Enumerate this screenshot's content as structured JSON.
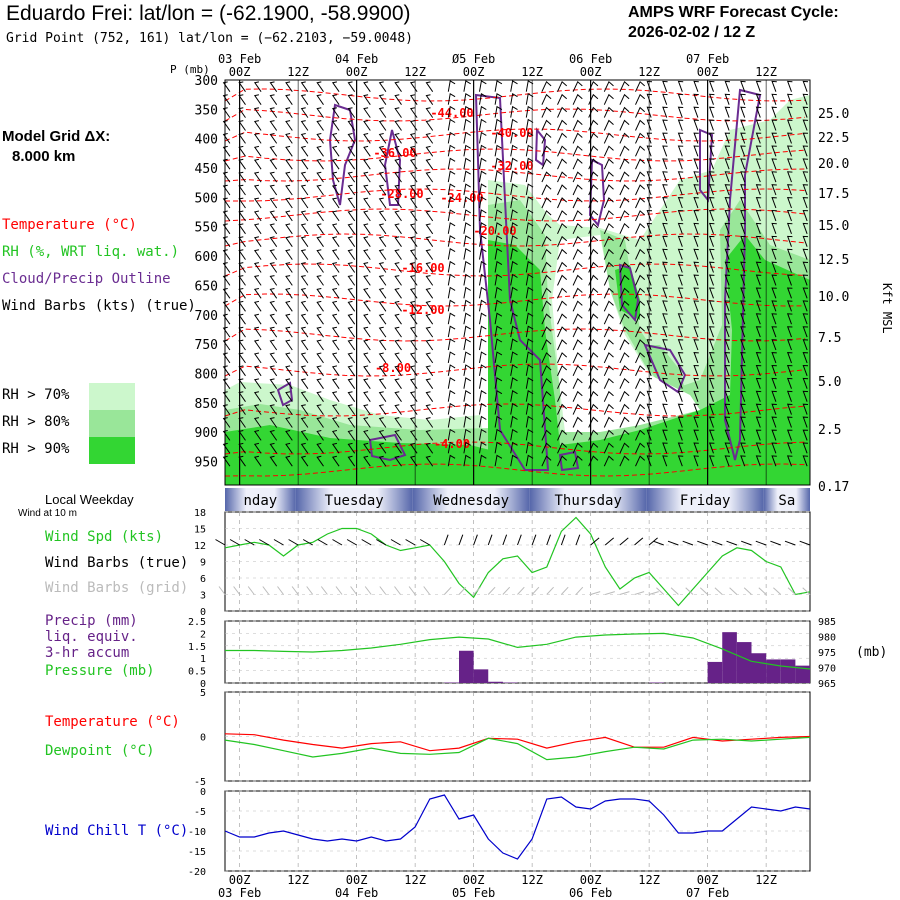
{
  "header": {
    "title": "Eduardo Frei:  lat/lon = (-62.1900, -58.9900)",
    "subtitle": "Grid Point (752, 161) lat/lon = (−62.2103, −59.0048)",
    "cycle_line1": "AMPS WRF Forecast Cycle:",
    "cycle_line2": "2026-02-02 / 12  Z"
  },
  "sidebar": {
    "model_grid_label": "Model Grid ΔX:",
    "model_grid_value": "8.000 km",
    "temperature": "Temperature (°C)",
    "rh": "RH (%, WRT liq. wat.)",
    "cloud": "Cloud/Precip Outline",
    "wind_barbs": "Wind Barbs (kts) (true)",
    "rh70": "RH > 70%",
    "rh80": "RH > 80%",
    "rh90": "RH > 90%",
    "local_weekday": "Local Weekday",
    "wind_at_10m": "Wind at 10 m",
    "wind_spd": "Wind Spd (kts)",
    "wind_barbs_true": "Wind Barbs (true)",
    "wind_barbs_grid": "Wind Barbs (grid)",
    "precip1": "Precip (mm)",
    "precip2": "liq. equiv.",
    "precip3": "3-hr accum",
    "pressure": "Pressure (mb)",
    "temp2": "Temperature (°C)",
    "dewpoint": "Dewpoint (°C)",
    "windchill": "Wind Chill T (°C)"
  },
  "colors": {
    "temperature": "#ff0000",
    "rh70": "#ccf7cc",
    "rh80": "#99e699",
    "rh90": "#33d633",
    "cloud": "#6a2c91",
    "wind_spd": "#22c422",
    "pressure": "#22c422",
    "precip": "#662288",
    "dewpoint": "#22c422",
    "windchill": "#0000cc",
    "barbs_grid": "#bbbbbb",
    "daybar": "#5566aa"
  },
  "chart_data": [
    {
      "type": "heatmap",
      "name": "cross-section",
      "ylabel": "P (mb)",
      "y2label": "Kft MSL",
      "pressure_ticks": [
        300,
        350,
        400,
        450,
        500,
        550,
        600,
        650,
        700,
        750,
        800,
        850,
        900,
        950
      ],
      "height_ticks": [
        "25.0",
        "22.5",
        "20.0",
        "17.5",
        "15.0",
        "12.5",
        "10.0",
        "7.5",
        "5.0",
        "2.5",
        "0.17"
      ],
      "x_ticks": [
        "00Z",
        "12Z",
        "00Z",
        "12Z",
        "00Z",
        "12Z",
        "00Z",
        "12Z",
        "00Z",
        "12Z"
      ],
      "top_dates": [
        "03 Feb",
        "04 Feb",
        "Ø5 Feb",
        "06 Feb",
        "07 Feb"
      ],
      "temperature_contour_labels": [
        "-44.00",
        "-40.00",
        "-36.00",
        "-32.00",
        "-28.00",
        "-24.00",
        "-20.00",
        "-16.00",
        "-12.00",
        "-8.00",
        "-4.00"
      ],
      "legend": [
        "RH > 70%",
        "RH > 80%",
        "RH > 90%"
      ]
    },
    {
      "type": "table",
      "name": "local-weekday",
      "days": [
        "nday",
        "Tuesday",
        "Wednesday",
        "Thursday",
        "Friday",
        "Sa"
      ]
    },
    {
      "type": "line",
      "name": "wind-speed",
      "ylabel": "Wind Spd (kts)",
      "yticks": [
        0,
        3,
        6,
        9,
        12,
        15,
        18
      ],
      "ylim": [
        0,
        18
      ],
      "x_hours": [
        0,
        3,
        6,
        9,
        12,
        15,
        18,
        21,
        24,
        27,
        30,
        33,
        36,
        39,
        42,
        45,
        48,
        51,
        54,
        57,
        60,
        63,
        66,
        69,
        72,
        75,
        78,
        81,
        84,
        87,
        90,
        93,
        96,
        99,
        102,
        105,
        108,
        111,
        114,
        117,
        120
      ],
      "values": [
        11.5,
        12,
        12.5,
        12,
        10,
        12,
        12.5,
        14,
        15,
        15,
        14,
        12,
        11,
        11.5,
        12,
        9,
        5,
        2.5,
        7,
        9.5,
        10,
        7,
        8,
        14.5,
        17,
        14,
        8,
        4,
        6,
        7,
        4,
        1,
        4,
        7,
        10,
        11.5,
        11,
        9,
        8,
        3,
        3.5
      ]
    },
    {
      "type": "bar",
      "name": "precip",
      "ylabel": "Precip (mm)",
      "y2label": "(mb)",
      "yticks": [
        0.0,
        0.5,
        1.0,
        1.5,
        2.0,
        2.5
      ],
      "ylim": [
        0,
        2.5
      ],
      "y2ticks": [
        965,
        970,
        975,
        980,
        985
      ],
      "y2lim": [
        965,
        985
      ],
      "x_hours": [
        3,
        6,
        9,
        12,
        15,
        18,
        21,
        24,
        27,
        30,
        33,
        36,
        39,
        42,
        45,
        48,
        51,
        54,
        57,
        60,
        63,
        66,
        69,
        72,
        75,
        78,
        81,
        84,
        87,
        90,
        93,
        96,
        99,
        102,
        105,
        108,
        111,
        114,
        117,
        120
      ],
      "values": [
        0,
        0,
        0,
        0,
        0,
        0,
        0,
        0,
        0,
        0,
        0,
        0,
        0,
        0,
        0,
        0.02,
        1.3,
        0.55,
        0.05,
        0.02,
        0,
        0,
        0,
        0,
        0,
        0,
        0,
        0,
        0,
        0.02,
        0,
        0,
        0,
        0.85,
        2.05,
        1.65,
        1.2,
        0.95,
        0.95,
        0.7
      ]
    },
    {
      "type": "line",
      "name": "pressure",
      "ylabel": "Pressure (mb)",
      "ylim": [
        965,
        985
      ],
      "x_hours": [
        0,
        6,
        12,
        18,
        24,
        30,
        36,
        42,
        48,
        54,
        60,
        66,
        72,
        78,
        84,
        90,
        96,
        102,
        108,
        114,
        120
      ],
      "values": [
        975.5,
        975.5,
        975.2,
        975,
        975.5,
        976.3,
        977.5,
        979,
        979.8,
        979.2,
        976.5,
        977.5,
        979.8,
        980.5,
        980.8,
        981,
        979.5,
        976,
        972,
        970.5,
        969.5
      ]
    },
    {
      "type": "line",
      "name": "temp-dewpoint",
      "yticks": [
        -5,
        0,
        5
      ],
      "ylim": [
        -5,
        5
      ],
      "x_hours": [
        0,
        6,
        12,
        18,
        24,
        30,
        36,
        42,
        48,
        54,
        60,
        66,
        72,
        78,
        84,
        90,
        96,
        102,
        108,
        114,
        120
      ],
      "series": [
        {
          "name": "Temperature (°C)",
          "values": [
            0.3,
            0.2,
            -0.4,
            -0.9,
            -1.3,
            -0.8,
            -0.6,
            -1.6,
            -1.3,
            -0.2,
            -0.3,
            -1.3,
            -0.6,
            -0.1,
            -1.2,
            -1.2,
            -0.1,
            -0.5,
            -0.3,
            -0.1,
            0.0
          ]
        },
        {
          "name": "Dewpoint (°C)",
          "values": [
            -0.4,
            -0.9,
            -1.6,
            -2.3,
            -1.9,
            -1.3,
            -1.9,
            -2.0,
            -1.8,
            -0.2,
            -0.8,
            -2.6,
            -2.3,
            -1.7,
            -1.2,
            -1.4,
            -0.4,
            -0.3,
            -0.5,
            -0.3,
            -0.1
          ]
        }
      ]
    },
    {
      "type": "line",
      "name": "wind-chill",
      "ylabel": "Wind Chill T (°C)",
      "yticks": [
        -20,
        -15,
        -10,
        -5,
        0
      ],
      "ylim": [
        -20,
        0
      ],
      "x_ticks": [
        "00Z",
        "12Z",
        "00Z",
        "12Z",
        "00Z",
        "12Z",
        "00Z",
        "12Z",
        "00Z",
        "12Z"
      ],
      "bottom_dates": [
        "03 Feb",
        "04 Feb",
        "05 Feb",
        "06 Feb",
        "07 Feb"
      ],
      "x_hours": [
        0,
        3,
        6,
        9,
        12,
        15,
        18,
        21,
        24,
        27,
        30,
        33,
        36,
        39,
        42,
        45,
        48,
        51,
        54,
        57,
        60,
        63,
        66,
        69,
        72,
        75,
        78,
        81,
        84,
        87,
        90,
        93,
        96,
        99,
        102,
        105,
        108,
        111,
        114,
        117,
        120
      ],
      "values": [
        -10,
        -11.5,
        -11.5,
        -10.5,
        -10,
        -11,
        -12,
        -12.5,
        -12,
        -12.5,
        -11.5,
        -12.5,
        -12,
        -9,
        -2,
        -1,
        -7,
        -6,
        -12,
        -15.5,
        -17,
        -12,
        -2,
        -1.5,
        -4,
        -4.5,
        -2.5,
        -2,
        -2,
        -2.5,
        -6,
        -10.5,
        -10.5,
        -10,
        -10,
        -7,
        -4,
        -4.5,
        -5,
        -4,
        -4.5
      ]
    }
  ]
}
